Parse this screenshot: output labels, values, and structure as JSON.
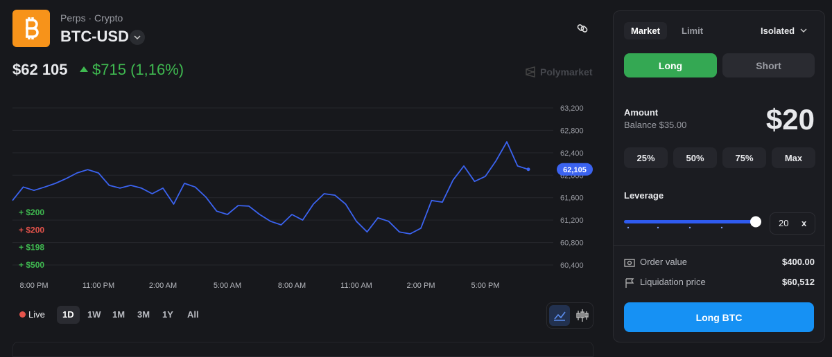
{
  "header": {
    "category": [
      "Perps",
      "Crypto"
    ],
    "symbol": "BTC-USD",
    "price": "$62 105",
    "change": "$715",
    "change_pct": "(1,16%)",
    "source": "Polymarket"
  },
  "chart_data": {
    "type": "line",
    "color": "#3b63f0",
    "grid": true,
    "categories": [
      null,
      null,
      "8:00 PM",
      null,
      null,
      null,
      null,
      null,
      "11:00 PM",
      null,
      null,
      null,
      null,
      null,
      "2:00 AM",
      null,
      null,
      null,
      null,
      null,
      "5:00 AM",
      null,
      null,
      null,
      null,
      null,
      "8:00 AM",
      null,
      null,
      null,
      null,
      null,
      "11:00 AM",
      null,
      null,
      null,
      null,
      null,
      "2:00 PM",
      null,
      null,
      null,
      null,
      null,
      "5:00 PM",
      null,
      null,
      null,
      null
    ],
    "values": [
      61550,
      61790,
      61730,
      61790,
      61855,
      61940,
      62040,
      62100,
      62040,
      61820,
      61770,
      61820,
      61770,
      61670,
      61770,
      61485,
      61855,
      61790,
      61610,
      61360,
      61300,
      61460,
      61450,
      61300,
      61180,
      61115,
      61300,
      61200,
      61485,
      61670,
      61645,
      61485,
      61180,
      60990,
      61240,
      61180,
      60990,
      60955,
      61055,
      61550,
      61520,
      61915,
      62165,
      61890,
      61980,
      62260,
      62595,
      62165,
      62105
    ],
    "value_labels": [
      null,
      null,
      null,
      null,
      null,
      null,
      null,
      null,
      null,
      null,
      null,
      null,
      null,
      null,
      null,
      null,
      null,
      null,
      null,
      null,
      null,
      null,
      null,
      null,
      null,
      null,
      null,
      null,
      null,
      null,
      null,
      null,
      null,
      null,
      null,
      null,
      null,
      null,
      null,
      null,
      null,
      null,
      null,
      null,
      null,
      null,
      null,
      null,
      "62,105"
    ],
    "ylim": [
      60400,
      63200
    ],
    "yticks": [
      {
        "value": 60400,
        "label": "60,400"
      },
      {
        "value": 60800,
        "label": "60,800"
      },
      {
        "value": 61200,
        "label": "61,200"
      },
      {
        "value": 61600,
        "label": "61,600"
      },
      {
        "value": 62000,
        "label": "62,000"
      },
      {
        "value": 62400,
        "label": "62,400"
      },
      {
        "value": 62800,
        "label": "62,800"
      },
      {
        "value": 63200,
        "label": "63,200"
      }
    ],
    "annotations": [
      {
        "text": "+ $200",
        "color": "#3fb950"
      },
      {
        "text": "+ $200",
        "color": "#e5534b"
      },
      {
        "text": "+ $198",
        "color": "#3fb950"
      },
      {
        "text": "+ $500",
        "color": "#3fb950"
      }
    ]
  },
  "range": {
    "live": "Live",
    "options": [
      "1D",
      "1W",
      "1M",
      "3M",
      "1Y",
      "All"
    ],
    "selected": 0
  },
  "order": {
    "tabs": [
      "Market",
      "Limit"
    ],
    "margin_mode": "Isolated",
    "sides": [
      "Long",
      "Short"
    ],
    "amount_label": "Amount",
    "balance": "Balance $35.00",
    "amount": "$20",
    "presets": [
      "25%",
      "50%",
      "75%",
      "Max"
    ],
    "leverage_label": "Leverage",
    "leverage": 20,
    "leverage_unit": "x",
    "rows": [
      {
        "label": "Order value",
        "value": "$400.00"
      },
      {
        "label": "Liquidation price",
        "value": "$60,512"
      }
    ],
    "submit": "Long BTC"
  }
}
